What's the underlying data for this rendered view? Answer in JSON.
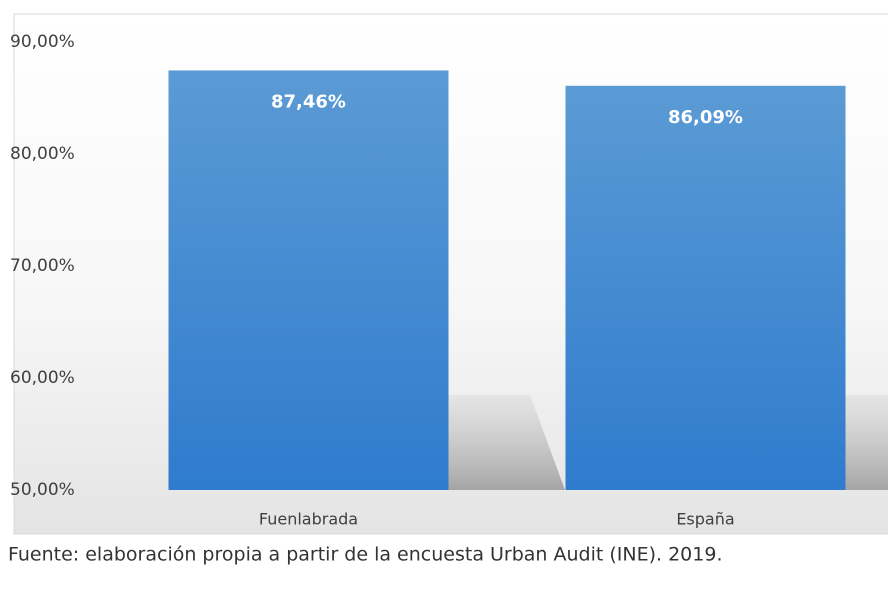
{
  "chart_data": {
    "type": "bar",
    "categories": [
      "Fuenlabrada",
      "España"
    ],
    "values": [
      87.46,
      86.09
    ],
    "value_labels": [
      "87,46%",
      "86,09%"
    ],
    "color": "#3f87d2",
    "ylim": [
      50,
      90
    ],
    "yticks": [
      {
        "value": 50,
        "label": "50,00%"
      },
      {
        "value": 60,
        "label": "60,00%"
      },
      {
        "value": 70,
        "label": "70,00%"
      },
      {
        "value": 80,
        "label": "80,00%"
      },
      {
        "value": 90,
        "label": "90,00%"
      }
    ],
    "grid": false,
    "source": "Fuente: elaboración propia a partir de la encuesta Urban Audit (INE). 2019."
  }
}
